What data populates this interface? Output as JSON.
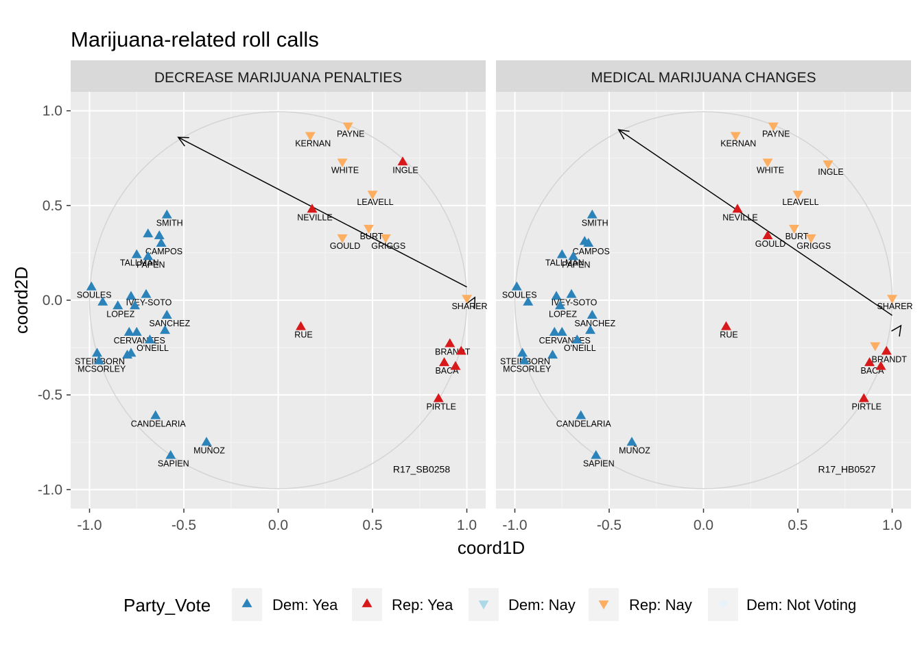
{
  "chart_data": {
    "type": "scatter",
    "title": "Marijuana-related roll calls",
    "xlabel": "coord1D",
    "ylabel": "coord2D",
    "xlim": [
      -1.1,
      1.1
    ],
    "ylim": [
      -1.1,
      1.1
    ],
    "x_ticks": [
      -1.0,
      -0.5,
      0.0,
      0.5,
      1.0
    ],
    "y_ticks": [
      -1.0,
      -0.5,
      0.0,
      0.5,
      1.0
    ],
    "x_tick_labels": [
      "-1.0",
      "-0.5",
      "0.0",
      "0.5",
      "1.0"
    ],
    "y_tick_labels": [
      "-1.0",
      "-0.5",
      "0.0",
      "0.5",
      "1.0"
    ],
    "grid": true,
    "legend": {
      "title": "Party_Vote",
      "position": "bottom",
      "entries": [
        {
          "key": "dem_yea",
          "label": "Dem: Yea",
          "color": "#2b83ba",
          "shape": "triangle-up"
        },
        {
          "key": "rep_yea",
          "label": "Rep: Yea",
          "color": "#d7191c",
          "shape": "triangle-up"
        },
        {
          "key": "dem_nay",
          "label": "Dem: Nay",
          "color": "#abd9e9",
          "shape": "triangle-down"
        },
        {
          "key": "rep_nay",
          "label": "Rep: Nay",
          "color": "#fdae61",
          "shape": "triangle-down"
        },
        {
          "key": "dem_nv",
          "label": "Dem: Not Voting",
          "color": "#e8f2f8",
          "shape": "circle"
        }
      ]
    },
    "panels": [
      {
        "strip": "DECREASE MARIJUANA PENALTIES",
        "rollcall": "R17_SB0258",
        "arrow": {
          "from": [
            1.0,
            0.07
          ],
          "to": [
            -0.53,
            0.86
          ]
        },
        "points": [
          {
            "name": "PAYNE",
            "x": 0.37,
            "y": 0.92,
            "vote": "rep_nay"
          },
          {
            "name": "KERNAN",
            "x": 0.17,
            "y": 0.87,
            "vote": "rep_nay"
          },
          {
            "name": "WHITE",
            "x": 0.34,
            "y": 0.73,
            "vote": "rep_nay"
          },
          {
            "name": "INGLE",
            "x": 0.66,
            "y": 0.73,
            "vote": "rep_yea"
          },
          {
            "name": "LEAVELL",
            "x": 0.5,
            "y": 0.56,
            "vote": "rep_nay"
          },
          {
            "name": "NEVILLE",
            "x": 0.18,
            "y": 0.48,
            "vote": "rep_yea"
          },
          {
            "name": "BURT",
            "x": 0.48,
            "y": 0.38,
            "vote": "rep_nay"
          },
          {
            "name": "GRIGGS",
            "x": 0.57,
            "y": 0.33,
            "vote": "rep_nay"
          },
          {
            "name": "GOULD",
            "x": 0.34,
            "y": 0.33,
            "vote": "rep_nay"
          },
          {
            "name": "SHARER",
            "x": 1.0,
            "y": 0.01,
            "vote": "rep_nay"
          },
          {
            "name": "RUE",
            "x": 0.12,
            "y": -0.14,
            "vote": "rep_yea"
          },
          {
            "name": "BRANDT",
            "x": 0.91,
            "y": -0.23,
            "vote": "rep_yea"
          },
          {
            "name": "",
            "x": 0.97,
            "y": -0.27,
            "vote": "rep_yea"
          },
          {
            "name": "BACA",
            "x": 0.88,
            "y": -0.33,
            "vote": "rep_yea"
          },
          {
            "name": "",
            "x": 0.94,
            "y": -0.35,
            "vote": "rep_yea"
          },
          {
            "name": "PIRTLE",
            "x": 0.85,
            "y": -0.52,
            "vote": "rep_yea"
          },
          {
            "name": "SMITH",
            "x": -0.59,
            "y": 0.45,
            "vote": "dem_yea"
          },
          {
            "name": "",
            "x": -0.69,
            "y": 0.35,
            "vote": "dem_yea"
          },
          {
            "name": "",
            "x": -0.63,
            "y": 0.34,
            "vote": "dem_yea"
          },
          {
            "name": "CAMPOS",
            "x": -0.62,
            "y": 0.3,
            "vote": "dem_yea"
          },
          {
            "name": "TALLMAN",
            "x": -0.75,
            "y": 0.24,
            "vote": "dem_yea"
          },
          {
            "name": "PAPEN",
            "x": -0.69,
            "y": 0.23,
            "vote": "dem_yea"
          },
          {
            "name": "SOULES",
            "x": -0.99,
            "y": 0.07,
            "vote": "dem_yea"
          },
          {
            "name": "",
            "x": -0.78,
            "y": 0.02,
            "vote": "dem_yea"
          },
          {
            "name": "IVEY-SOTO",
            "x": -0.7,
            "y": 0.03,
            "vote": "dem_yea"
          },
          {
            "name": "",
            "x": -0.93,
            "y": -0.01,
            "vote": "dem_yea"
          },
          {
            "name": "LOPEZ",
            "x": -0.85,
            "y": -0.03,
            "vote": "dem_yea"
          },
          {
            "name": "",
            "x": -0.76,
            "y": -0.03,
            "vote": "dem_yea"
          },
          {
            "name": "SANCHEZ",
            "x": -0.59,
            "y": -0.08,
            "vote": "dem_yea"
          },
          {
            "name": "",
            "x": -0.79,
            "y": -0.17,
            "vote": "dem_yea"
          },
          {
            "name": "CERVANTES",
            "x": -0.75,
            "y": -0.17,
            "vote": "dem_yea"
          },
          {
            "name": "",
            "x": -0.6,
            "y": -0.16,
            "vote": "dem_yea"
          },
          {
            "name": "O'NEILL",
            "x": -0.68,
            "y": -0.21,
            "vote": "dem_yea"
          },
          {
            "name": "",
            "x": -0.8,
            "y": -0.29,
            "vote": "dem_yea"
          },
          {
            "name": "STEINBORN",
            "x": -0.96,
            "y": -0.28,
            "vote": "dem_yea"
          },
          {
            "name": "",
            "x": -0.78,
            "y": -0.28,
            "vote": "dem_yea"
          },
          {
            "name": "MCSORLEY",
            "x": -0.95,
            "y": -0.32,
            "vote": "dem_yea"
          },
          {
            "name": "CANDELARIA",
            "x": -0.65,
            "y": -0.61,
            "vote": "dem_yea"
          },
          {
            "name": "MUÑOZ",
            "x": -0.38,
            "y": -0.75,
            "vote": "dem_yea"
          },
          {
            "name": "SAPIEN",
            "x": -0.57,
            "y": -0.82,
            "vote": "dem_yea"
          }
        ]
      },
      {
        "strip": "MEDICAL MARIJUANA CHANGES",
        "rollcall": "R17_HB0527",
        "arrow": {
          "from": [
            1.0,
            -0.08
          ],
          "to": [
            -0.45,
            0.9
          ]
        },
        "points": [
          {
            "name": "PAYNE",
            "x": 0.37,
            "y": 0.92,
            "vote": "rep_nay"
          },
          {
            "name": "KERNAN",
            "x": 0.17,
            "y": 0.87,
            "vote": "rep_nay"
          },
          {
            "name": "WHITE",
            "x": 0.34,
            "y": 0.73,
            "vote": "rep_nay"
          },
          {
            "name": "INGLE",
            "x": 0.66,
            "y": 0.72,
            "vote": "rep_nay"
          },
          {
            "name": "LEAVELL",
            "x": 0.5,
            "y": 0.56,
            "vote": "rep_nay"
          },
          {
            "name": "NEVILLE",
            "x": 0.18,
            "y": 0.48,
            "vote": "rep_yea"
          },
          {
            "name": "BURT",
            "x": 0.48,
            "y": 0.38,
            "vote": "rep_nay"
          },
          {
            "name": "GRIGGS",
            "x": 0.57,
            "y": 0.33,
            "vote": "rep_nay"
          },
          {
            "name": "GOULD",
            "x": 0.34,
            "y": 0.34,
            "vote": "rep_yea"
          },
          {
            "name": "SHARER",
            "x": 1.0,
            "y": 0.01,
            "vote": "rep_nay"
          },
          {
            "name": "RUE",
            "x": 0.12,
            "y": -0.14,
            "vote": "rep_yea"
          },
          {
            "name": "",
            "x": 0.91,
            "y": -0.24,
            "vote": "rep_nay"
          },
          {
            "name": "BRANDT",
            "x": 0.97,
            "y": -0.27,
            "vote": "rep_yea"
          },
          {
            "name": "BACA",
            "x": 0.88,
            "y": -0.33,
            "vote": "rep_yea"
          },
          {
            "name": "",
            "x": 0.94,
            "y": -0.35,
            "vote": "rep_yea"
          },
          {
            "name": "PIRTLE",
            "x": 0.85,
            "y": -0.52,
            "vote": "rep_yea"
          },
          {
            "name": "SMITH",
            "x": -0.59,
            "y": 0.45,
            "vote": "dem_yea"
          },
          {
            "name": "",
            "x": -0.63,
            "y": 0.31,
            "vote": "dem_yea"
          },
          {
            "name": "CAMPOS",
            "x": -0.61,
            "y": 0.3,
            "vote": "dem_yea"
          },
          {
            "name": "TALLMAN",
            "x": -0.75,
            "y": 0.24,
            "vote": "dem_yea"
          },
          {
            "name": "PAPEN",
            "x": -0.69,
            "y": 0.23,
            "vote": "dem_yea"
          },
          {
            "name": "SOULES",
            "x": -0.99,
            "y": 0.07,
            "vote": "dem_yea"
          },
          {
            "name": "",
            "x": -0.78,
            "y": 0.02,
            "vote": "dem_yea"
          },
          {
            "name": "IVEY-SOTO",
            "x": -0.7,
            "y": 0.03,
            "vote": "dem_yea"
          },
          {
            "name": "",
            "x": -0.93,
            "y": -0.01,
            "vote": "dem_yea"
          },
          {
            "name": "LOPEZ",
            "x": -0.76,
            "y": -0.03,
            "vote": "dem_yea"
          },
          {
            "name": "SANCHEZ",
            "x": -0.59,
            "y": -0.08,
            "vote": "dem_yea"
          },
          {
            "name": "",
            "x": -0.79,
            "y": -0.17,
            "vote": "dem_yea"
          },
          {
            "name": "CERVANTES",
            "x": -0.75,
            "y": -0.17,
            "vote": "dem_yea"
          },
          {
            "name": "",
            "x": -0.6,
            "y": -0.16,
            "vote": "dem_yea"
          },
          {
            "name": "O'NEILL",
            "x": -0.67,
            "y": -0.21,
            "vote": "dem_yea"
          },
          {
            "name": "",
            "x": -0.8,
            "y": -0.29,
            "vote": "dem_yea"
          },
          {
            "name": "STEINBORN",
            "x": -0.96,
            "y": -0.28,
            "vote": "dem_yea"
          },
          {
            "name": "MCSORLEY",
            "x": -0.95,
            "y": -0.32,
            "vote": "dem_yea"
          },
          {
            "name": "CANDELARIA",
            "x": -0.65,
            "y": -0.61,
            "vote": "dem_yea"
          },
          {
            "name": "MUÑOZ",
            "x": -0.38,
            "y": -0.75,
            "vote": "dem_yea"
          },
          {
            "name": "SAPIEN",
            "x": -0.57,
            "y": -0.82,
            "vote": "dem_yea"
          }
        ]
      }
    ]
  }
}
